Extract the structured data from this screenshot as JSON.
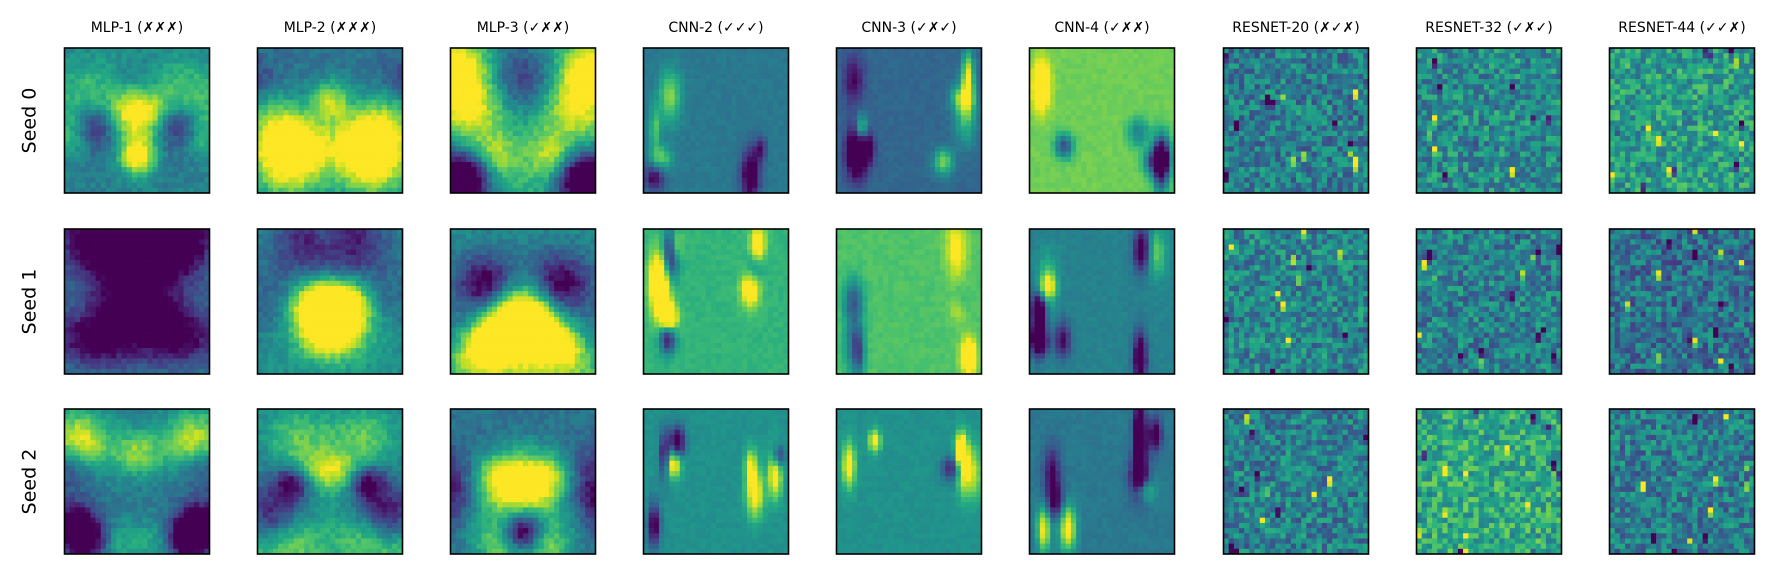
{
  "chart_data": {
    "type": "heatmap",
    "colormap": "viridis",
    "grid": false,
    "columns": [
      {
        "title": "MLP-1 (✗✗✗)",
        "family": "mlp"
      },
      {
        "title": "MLP-2 (✗✗✗)",
        "family": "mlp"
      },
      {
        "title": "MLP-3 (✓✗✗)",
        "family": "mlp"
      },
      {
        "title": "CNN-2 (✓✓✓)",
        "family": "cnn"
      },
      {
        "title": "CNN-3 (✓✗✓)",
        "family": "cnn"
      },
      {
        "title": "CNN-4 (✓✗✗)",
        "family": "cnn"
      },
      {
        "title": "RESNET-20 (✗✓✗)",
        "family": "resnet"
      },
      {
        "title": "RESNET-32 (✓✗✓)",
        "family": "resnet"
      },
      {
        "title": "RESNET-44 (✓✓✗)",
        "family": "resnet"
      }
    ],
    "rows": [
      {
        "label": "Seed 0"
      },
      {
        "label": "Seed 1"
      },
      {
        "label": "Seed 2"
      }
    ],
    "panel_base_levels": [
      [
        0.45,
        0.38,
        0.62,
        0.4,
        0.33,
        0.78,
        0.42,
        0.48,
        0.55
      ],
      [
        0.42,
        0.47,
        0.5,
        0.65,
        0.72,
        0.44,
        0.45,
        0.43,
        0.37
      ],
      [
        0.4,
        0.45,
        0.38,
        0.5,
        0.5,
        0.4,
        0.43,
        0.6,
        0.42
      ]
    ]
  }
}
